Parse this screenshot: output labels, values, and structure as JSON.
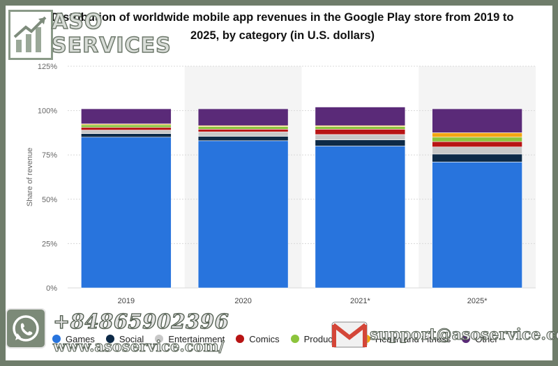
{
  "watermark": {
    "logo_line1": "ASO",
    "logo_line2": "SERVICES",
    "phone": "+84865902396",
    "website": "www.asoservice.com/",
    "email": "support@asoservice.com",
    "whatsapp_icon": "whatsapp-icon",
    "gmail_icon": "gmail-icon"
  },
  "chart_data": {
    "type": "bar",
    "stacked": true,
    "title": "Distribution of worldwide mobile app revenues in the Google Play store from 2019 to 2025, by category (in U.S. dollars)",
    "xlabel": "",
    "ylabel": "Share of revenue",
    "ylim": [
      0,
      125
    ],
    "ytick_labels": [
      "0%",
      "25%",
      "50%",
      "75%",
      "100%",
      "125%"
    ],
    "categories": [
      "2019",
      "2020",
      "2021*",
      "2025*"
    ],
    "grid": true,
    "legend_position": "bottom",
    "series": [
      {
        "name": "Games",
        "color": "#2874dd",
        "values": [
          85,
          83,
          80,
          71
        ]
      },
      {
        "name": "Social",
        "color": "#0d2a47",
        "values": [
          2,
          2.5,
          3.5,
          4.5
        ]
      },
      {
        "name": "Entertainment",
        "color": "#c8c8c8",
        "values": [
          2,
          2.5,
          3,
          4
        ]
      },
      {
        "name": "Comics",
        "color": "#b81414",
        "values": [
          1.5,
          1.5,
          3,
          3
        ]
      },
      {
        "name": "Productivity",
        "color": "#8cc43c",
        "values": [
          1.5,
          1.5,
          1.5,
          2.5
        ]
      },
      {
        "name": "Health and Fitness",
        "color": "#f2a612",
        "values": [
          0.5,
          0.5,
          0.5,
          2.5
        ]
      },
      {
        "name": "Other",
        "color": "#5a2a78",
        "values": [
          8.5,
          9.5,
          10.5,
          13.5
        ]
      }
    ]
  }
}
